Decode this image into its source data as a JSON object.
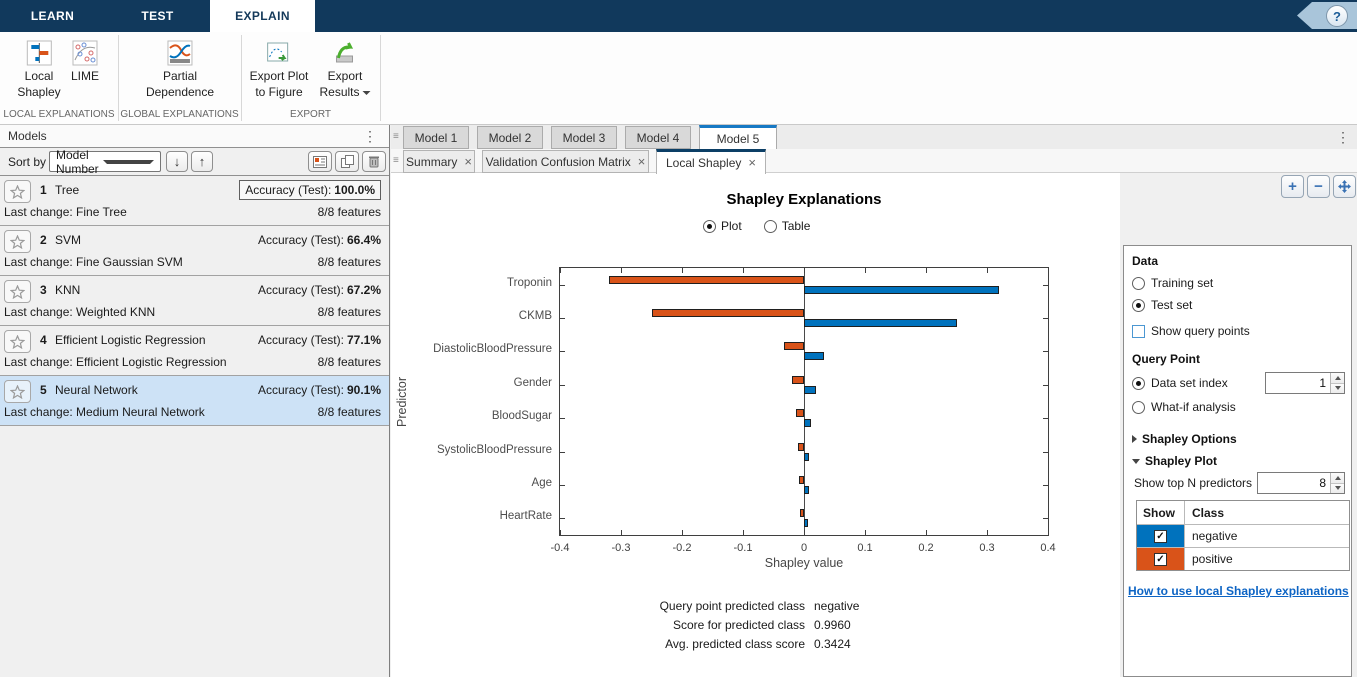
{
  "ribbon": {
    "tabs": [
      {
        "label": "LEARN",
        "active": false
      },
      {
        "label": "TEST",
        "active": false
      },
      {
        "label": "EXPLAIN",
        "active": true
      }
    ],
    "buttons": {
      "local_shapley": {
        "line1": "Local",
        "line2": "Shapley"
      },
      "lime": {
        "line1": "LIME",
        "line2": ""
      },
      "partial_dependence": {
        "line1": "Partial",
        "line2": "Dependence"
      },
      "export_plot": {
        "line1": "Export Plot",
        "line2": "to Figure"
      },
      "export_results": {
        "line1": "Export",
        "line2": "Results"
      }
    },
    "groups": [
      {
        "label": "LOCAL EXPLANATIONS"
      },
      {
        "label": "GLOBAL EXPLANATIONS"
      },
      {
        "label": "EXPORT"
      }
    ],
    "help": "?"
  },
  "models_panel": {
    "title": "Models",
    "menu_icon": "⋮",
    "sort_label": "Sort by",
    "sort_value": "Model Number",
    "models": [
      {
        "number": "1",
        "name": "Tree",
        "accuracy_label": "Accuracy (Test):",
        "accuracy": "100.0%",
        "accuracy_boxed": true,
        "last_change": "Last change: Fine Tree",
        "features": "8/8 features",
        "selected": false
      },
      {
        "number": "2",
        "name": "SVM",
        "accuracy_label": "Accuracy (Test):",
        "accuracy": "66.4%",
        "accuracy_boxed": false,
        "last_change": "Last change: Fine Gaussian SVM",
        "features": "8/8 features",
        "selected": false
      },
      {
        "number": "3",
        "name": "KNN",
        "accuracy_label": "Accuracy (Test):",
        "accuracy": "67.2%",
        "accuracy_boxed": false,
        "last_change": "Last change: Weighted KNN",
        "features": "8/8 features",
        "selected": false
      },
      {
        "number": "4",
        "name": "Efficient Logistic Regression",
        "accuracy_label": "Accuracy (Test):",
        "accuracy": "77.1%",
        "accuracy_boxed": false,
        "last_change": "Last change: Efficient Logistic Regression",
        "features": "8/8 features",
        "selected": false
      },
      {
        "number": "5",
        "name": "Neural Network",
        "accuracy_label": "Accuracy (Test):",
        "accuracy": "90.1%",
        "accuracy_boxed": false,
        "last_change": "Last change: Medium Neural Network",
        "features": "8/8 features",
        "selected": true
      }
    ]
  },
  "document": {
    "model_tabs": [
      {
        "label": "Model 1",
        "active": false
      },
      {
        "label": "Model 2",
        "active": false
      },
      {
        "label": "Model 3",
        "active": false
      },
      {
        "label": "Model 4",
        "active": false
      },
      {
        "label": "Model 5",
        "active": true
      }
    ],
    "view_tabs": [
      {
        "label": "Summary",
        "active": false
      },
      {
        "label": "Validation Confusion Matrix",
        "active": false
      },
      {
        "label": "Local Shapley",
        "active": true
      }
    ],
    "close_glyph": "×",
    "menu_icon": "⋮"
  },
  "figure": {
    "title": "Shapley Explanations",
    "view_options": [
      {
        "label": "Plot",
        "selected": true
      },
      {
        "label": "Table",
        "selected": false
      }
    ],
    "footer": [
      {
        "label": "Query point predicted class",
        "value": "negative"
      },
      {
        "label": "Score for predicted class",
        "value": "0.9960"
      },
      {
        "label": "Avg. predicted class score",
        "value": "0.3424"
      }
    ]
  },
  "chart_data": {
    "type": "bar",
    "orientation": "horizontal",
    "title": "Shapley Explanations",
    "xlabel": "Shapley value",
    "ylabel": "Predictor",
    "categories": [
      "Troponin",
      "CKMB",
      "DiastolicBloodPressure",
      "Gender",
      "BloodSugar",
      "SystolicBloodPressure",
      "Age",
      "HeartRate"
    ],
    "series": [
      {
        "name": "negative",
        "color": "#0072BD",
        "values": [
          0.32,
          0.25,
          0.032,
          0.02,
          0.011,
          0.009,
          0.008,
          0.006
        ]
      },
      {
        "name": "positive",
        "color": "#D95319",
        "values": [
          -0.32,
          -0.25,
          -0.033,
          -0.02,
          -0.013,
          -0.01,
          -0.008,
          -0.006
        ]
      }
    ],
    "xlim": [
      -0.4,
      0.4
    ],
    "xticks": [
      -0.4,
      -0.3,
      -0.2,
      -0.1,
      0,
      0.1,
      0.2,
      0.3,
      0.4
    ],
    "grid": false,
    "legend_position": "none"
  },
  "options_panel": {
    "zoom_in_glyph": "+",
    "zoom_out_glyph": "−",
    "data_title": "Data",
    "training_set": "Training set",
    "test_set": "Test set",
    "show_query_points": "Show query points",
    "query_point_title": "Query Point",
    "data_set_index": "Data set index",
    "query_index_value": "1",
    "what_if": "What-if analysis",
    "shapley_options": "Shapley Options",
    "shapley_plot": "Shapley Plot",
    "top_n_label": "Show top N predictors",
    "top_n_value": "8",
    "class_table": {
      "show_header": "Show",
      "class_header": "Class",
      "rows": [
        {
          "label": "negative",
          "color": "#0072BD",
          "checked": true
        },
        {
          "label": "positive",
          "color": "#D95319",
          "checked": true
        }
      ]
    },
    "help_link": "How to use local Shapley explanations"
  }
}
